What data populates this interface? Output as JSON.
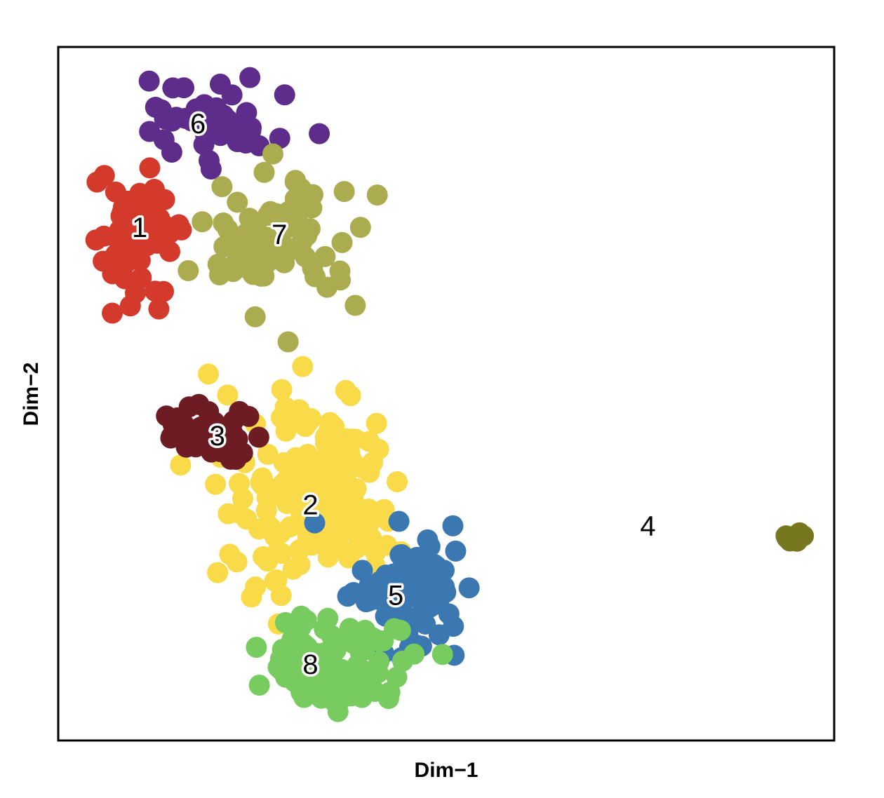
{
  "chart_data": {
    "type": "scatter",
    "xlabel": "Dim−1",
    "ylabel": "Dim−2",
    "xlim": [
      0,
      100
    ],
    "ylim": [
      0,
      100
    ],
    "axis_ticks": false,
    "grid": false,
    "legend": "none",
    "clusters": [
      {
        "label": "1",
        "color": "#D33A2C",
        "label_pos": [
          10.5,
          74
        ],
        "center": [
          10,
          73
        ],
        "spread": [
          5.5,
          7.5
        ],
        "count": 70
      },
      {
        "label": "2",
        "color": "#F9DA48",
        "label_pos": [
          32.5,
          34
        ],
        "center": [
          33,
          36
        ],
        "spread": [
          11,
          12
        ],
        "count": 170
      },
      {
        "label": "3",
        "color": "#6E1C23",
        "label_pos": [
          20.5,
          44
        ],
        "center": [
          20,
          44
        ],
        "spread": [
          6,
          4.5
        ],
        "count": 45
      },
      {
        "label": "4",
        "color": "#77771F",
        "label_pos": [
          76,
          31
        ],
        "center": [
          94.5,
          29.5
        ],
        "spread": [
          1.7,
          0.8
        ],
        "count": 10
      },
      {
        "label": "5",
        "color": "#3B78B1",
        "label_pos": [
          43.5,
          21
        ],
        "center": [
          46,
          22
        ],
        "spread": [
          7,
          8
        ],
        "count": 85
      },
      {
        "label": "6",
        "color": "#5E2C8A",
        "label_pos": [
          18,
          89
        ],
        "center": [
          20,
          89
        ],
        "spread": [
          8,
          6
        ],
        "count": 45
      },
      {
        "label": "7",
        "color": "#ABAB50",
        "label_pos": [
          28.5,
          73
        ],
        "center": [
          28,
          71
        ],
        "spread": [
          10,
          11
        ],
        "count": 75
      },
      {
        "label": "8",
        "color": "#78CB5F",
        "label_pos": [
          32.5,
          11
        ],
        "center": [
          35,
          11
        ],
        "spread": [
          9,
          7
        ],
        "count": 120
      }
    ]
  }
}
